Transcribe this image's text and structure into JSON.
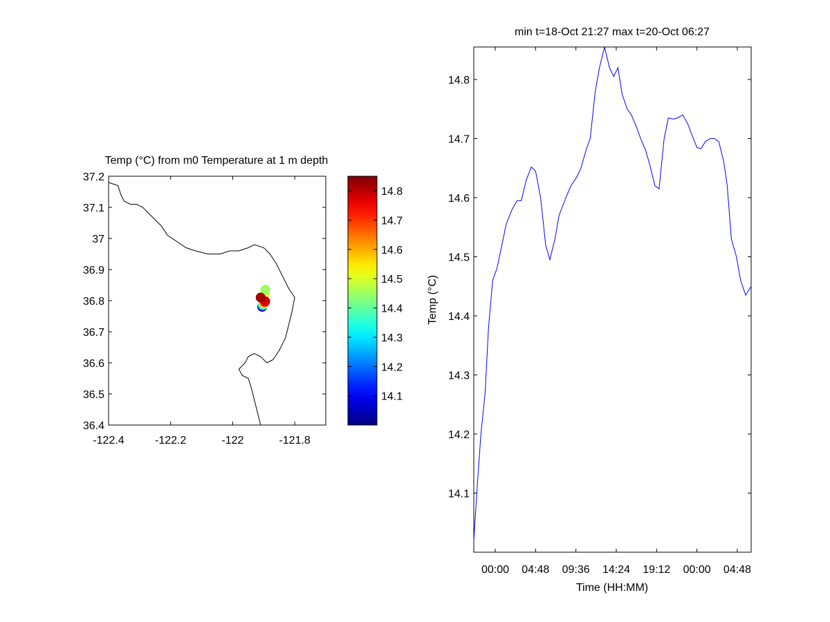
{
  "chart_data": [
    {
      "type": "scatter",
      "title": "Temp (°C) from m0 Temperature at 1 m depth",
      "xlabel": "",
      "ylabel": "",
      "xlim": [
        -122.4,
        -121.7
      ],
      "ylim": [
        36.4,
        37.2
      ],
      "x_ticks": [
        -122.4,
        -122.2,
        -122,
        -121.8
      ],
      "x_tick_labels": [
        "-122.4",
        "-122.2",
        "-122",
        "-121.8"
      ],
      "y_ticks": [
        36.4,
        36.5,
        36.6,
        36.7,
        36.8,
        36.9,
        37.0,
        37.1,
        37.2
      ],
      "y_tick_labels": [
        "36.4",
        "36.5",
        "36.6",
        "36.7",
        "36.8",
        "36.9",
        "37",
        "37.1",
        "37.2"
      ],
      "colorbar": {
        "colormap": "jet",
        "range": [
          14.0,
          14.85
        ],
        "ticks": [
          14.1,
          14.2,
          14.3,
          14.4,
          14.5,
          14.6,
          14.7,
          14.8
        ],
        "tick_labels": [
          "14.1",
          "14.2",
          "14.3",
          "14.4",
          "14.5",
          "14.6",
          "14.7",
          "14.8"
        ]
      },
      "points": [
        {
          "lon": -121.905,
          "lat": 36.78,
          "temp": 14.05
        },
        {
          "lon": -121.903,
          "lat": 36.785,
          "temp": 14.3
        },
        {
          "lon": -121.9,
          "lat": 36.79,
          "temp": 14.55
        },
        {
          "lon": -121.898,
          "lat": 36.82,
          "temp": 14.5
        },
        {
          "lon": -121.895,
          "lat": 36.835,
          "temp": 14.45
        },
        {
          "lon": -121.897,
          "lat": 36.795,
          "temp": 14.7
        },
        {
          "lon": -121.895,
          "lat": 36.798,
          "temp": 14.78
        },
        {
          "lon": -121.91,
          "lat": 36.81,
          "temp": 14.72
        },
        {
          "lon": -121.91,
          "lat": 36.81,
          "temp": 14.82
        }
      ],
      "coastline": [
        [
          -122.4,
          37.18
        ],
        [
          -122.37,
          37.17
        ],
        [
          -122.36,
          37.14
        ],
        [
          -122.35,
          37.12
        ],
        [
          -122.33,
          37.11
        ],
        [
          -122.31,
          37.11
        ],
        [
          -122.29,
          37.1
        ],
        [
          -122.27,
          37.08
        ],
        [
          -122.25,
          37.06
        ],
        [
          -122.23,
          37.04
        ],
        [
          -122.21,
          37.01
        ],
        [
          -122.18,
          36.99
        ],
        [
          -122.15,
          36.97
        ],
        [
          -122.12,
          36.96
        ],
        [
          -122.08,
          36.95
        ],
        [
          -122.04,
          36.95
        ],
        [
          -122.01,
          36.96
        ],
        [
          -121.98,
          36.96
        ],
        [
          -121.95,
          36.97
        ],
        [
          -121.93,
          36.98
        ],
        [
          -121.9,
          36.97
        ],
        [
          -121.88,
          36.95
        ],
        [
          -121.86,
          36.92
        ],
        [
          -121.84,
          36.88
        ],
        [
          -121.82,
          36.84
        ],
        [
          -121.8,
          36.81
        ],
        [
          -121.81,
          36.76
        ],
        [
          -121.82,
          36.72
        ],
        [
          -121.83,
          36.68
        ],
        [
          -121.85,
          36.64
        ],
        [
          -121.87,
          36.61
        ],
        [
          -121.89,
          36.6
        ],
        [
          -121.91,
          36.62
        ],
        [
          -121.93,
          36.63
        ],
        [
          -121.95,
          36.62
        ],
        [
          -121.96,
          36.6
        ],
        [
          -121.98,
          36.58
        ],
        [
          -121.97,
          36.56
        ],
        [
          -121.95,
          36.55
        ],
        [
          -121.94,
          36.52
        ],
        [
          -121.93,
          36.48
        ],
        [
          -121.92,
          36.44
        ],
        [
          -121.91,
          36.4
        ]
      ]
    },
    {
      "type": "line",
      "title": "min t=18-Oct 21:27 max t=20-Oct 06:27",
      "xlabel": "Time (HH:MM)",
      "ylabel": "Temp (°C)",
      "x_unit": "hours from 18-Oct 00:00",
      "xlim": [
        21.45,
        54.45
      ],
      "ylim": [
        14.0,
        14.855
      ],
      "x_ticks": [
        24.0,
        28.8,
        33.6,
        38.4,
        43.2,
        48.0,
        52.8
      ],
      "x_tick_labels": [
        "00:00",
        "04:48",
        "09:36",
        "14:24",
        "19:12",
        "00:00",
        "04:48"
      ],
      "y_ticks": [
        14.1,
        14.2,
        14.3,
        14.4,
        14.5,
        14.6,
        14.7,
        14.8
      ],
      "y_tick_labels": [
        "14.1",
        "14.2",
        "14.3",
        "14.4",
        "14.5",
        "14.6",
        "14.7",
        "14.8"
      ],
      "series": [
        {
          "color": "#0000ff",
          "x": [
            21.45,
            21.9,
            22.3,
            22.8,
            23.2,
            23.7,
            24.2,
            24.8,
            25.3,
            26.0,
            26.6,
            27.1,
            27.7,
            28.3,
            28.8,
            29.4,
            30.0,
            30.5,
            31.1,
            31.6,
            32.4,
            33.0,
            33.7,
            34.2,
            34.8,
            35.3,
            35.9,
            36.4,
            37.0,
            37.6,
            38.1,
            38.6,
            39.1,
            39.7,
            40.2,
            40.8,
            41.3,
            41.9,
            42.4,
            43.0,
            43.5,
            44.1,
            44.6,
            45.2,
            45.7,
            46.3,
            46.9,
            47.3,
            48.0,
            48.5,
            49.0,
            49.6,
            50.1,
            50.6,
            51.2,
            51.6,
            52.1,
            52.7,
            53.2,
            53.8,
            54.45
          ],
          "y": [
            14.02,
            14.12,
            14.2,
            14.27,
            14.38,
            14.46,
            14.48,
            14.52,
            14.555,
            14.58,
            14.595,
            14.595,
            14.63,
            14.652,
            14.645,
            14.6,
            14.52,
            14.495,
            14.53,
            14.57,
            14.6,
            14.62,
            14.635,
            14.65,
            14.68,
            14.7,
            14.78,
            14.82,
            14.855,
            14.82,
            14.805,
            14.82,
            14.775,
            14.75,
            14.74,
            14.72,
            14.7,
            14.68,
            14.655,
            14.62,
            14.615,
            14.7,
            14.735,
            14.733,
            14.735,
            14.74,
            14.725,
            14.71,
            14.685,
            14.683,
            14.695,
            14.7,
            14.7,
            14.695,
            14.66,
            14.62,
            14.53,
            14.5,
            14.46,
            14.435,
            14.45
          ]
        }
      ]
    }
  ]
}
